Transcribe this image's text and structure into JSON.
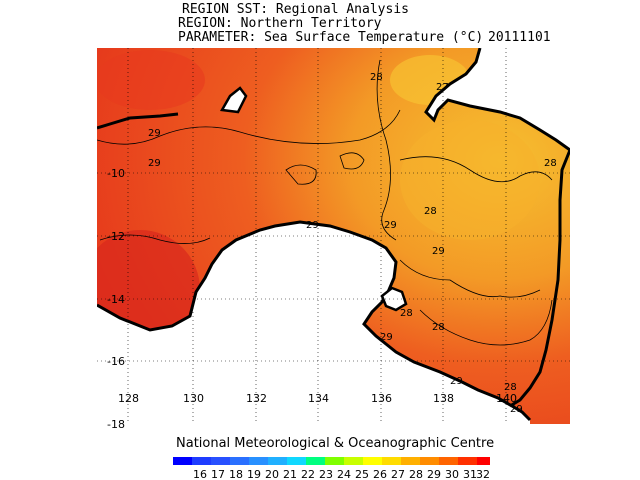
{
  "header": {
    "title": "REGION SST: Regional Analysis",
    "region": "REGION: Northern Territory",
    "parameter": "PARAMETER: Sea Surface Temperature (°C)",
    "date": "20111101"
  },
  "axes": {
    "lon_ticks": [
      "128",
      "130",
      "132",
      "134",
      "136",
      "138",
      "140"
    ],
    "lat_ticks": [
      "-10",
      "-12",
      "-14",
      "-16",
      "-18"
    ]
  },
  "contour_labels": [
    "29",
    "28",
    "27",
    "29",
    "29",
    "29",
    "28",
    "29",
    "28",
    "29",
    "28",
    "28",
    "29",
    "28",
    "29"
  ],
  "credit": "National Meteorological & Oceanographic Centre",
  "colorbar": {
    "labels": [
      "16",
      "17",
      "18",
      "19",
      "20",
      "21",
      "22",
      "23",
      "24",
      "25",
      "26",
      "27",
      "28",
      "29",
      "30",
      "31",
      "32"
    ],
    "colors": [
      "#0000ff",
      "#1e3cff",
      "#2850ff",
      "#2a70ff",
      "#2890ff",
      "#20b0ff",
      "#10d8ff",
      "#00ff80",
      "#80ff00",
      "#c8ff00",
      "#ffff00",
      "#ffdc00",
      "#ffb000",
      "#ff8c00",
      "#ff6400",
      "#ff3000",
      "#ff0000"
    ]
  },
  "colors": {
    "warm_sea": "#ee4c1e",
    "hot_sea": "#dd2a1c",
    "mild_sea": "#f49a24",
    "cool_sea": "#f6b82c",
    "land": "#ffffff",
    "coast": "#000000"
  }
}
